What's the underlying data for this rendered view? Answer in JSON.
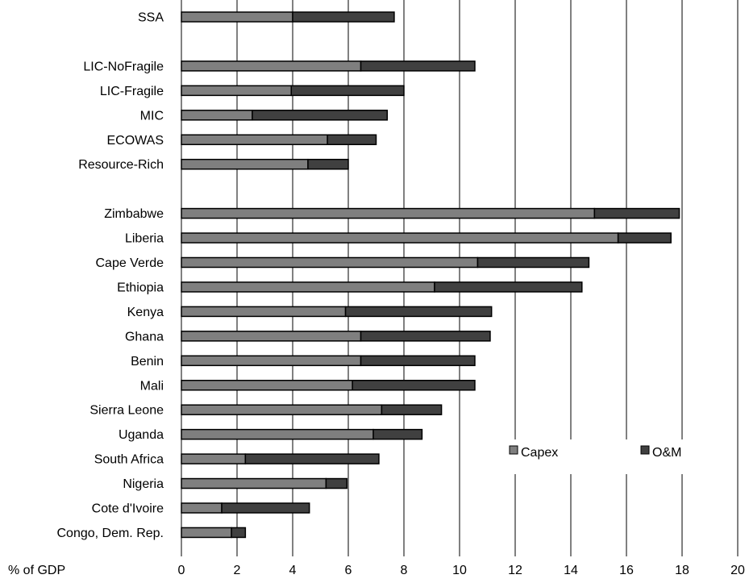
{
  "chart_data": {
    "type": "bar",
    "orientation": "horizontal",
    "stacked": true,
    "categories": [
      "SSA",
      "",
      "LIC-NoFragile",
      "LIC-Fragile",
      "MIC",
      "ECOWAS",
      "Resource-Rich",
      "",
      "Zimbabwe",
      "Liberia",
      "Cape Verde",
      "Ethiopia",
      "Kenya",
      "Ghana",
      "Benin",
      "Mali",
      "Sierra Leone",
      "Uganda",
      "South Africa",
      "Nigeria",
      "Cote d'Ivoire",
      "Congo, Dem. Rep."
    ],
    "series": [
      {
        "name": "Capex",
        "color": "#7f7f7f",
        "values": [
          4.0,
          null,
          6.45,
          3.95,
          2.55,
          5.25,
          4.55,
          null,
          14.85,
          15.7,
          10.65,
          9.1,
          5.9,
          6.45,
          6.45,
          6.15,
          7.2,
          6.9,
          2.3,
          5.2,
          1.45,
          1.8
        ]
      },
      {
        "name": "O&M",
        "color": "#404040",
        "values": [
          3.65,
          null,
          4.1,
          4.05,
          4.85,
          1.75,
          1.45,
          null,
          3.05,
          1.9,
          4.0,
          5.3,
          5.25,
          4.65,
          4.1,
          4.4,
          2.15,
          1.75,
          4.8,
          0.75,
          3.15,
          0.5
        ]
      }
    ],
    "xlabel": "% of GDP",
    "xlim": [
      0,
      20
    ],
    "xticks": [
      0,
      2,
      4,
      6,
      8,
      10,
      12,
      14,
      16,
      18,
      20
    ],
    "grid": true,
    "legend": {
      "placement": "lower-right",
      "entries": [
        "Capex",
        "O&M"
      ]
    }
  }
}
